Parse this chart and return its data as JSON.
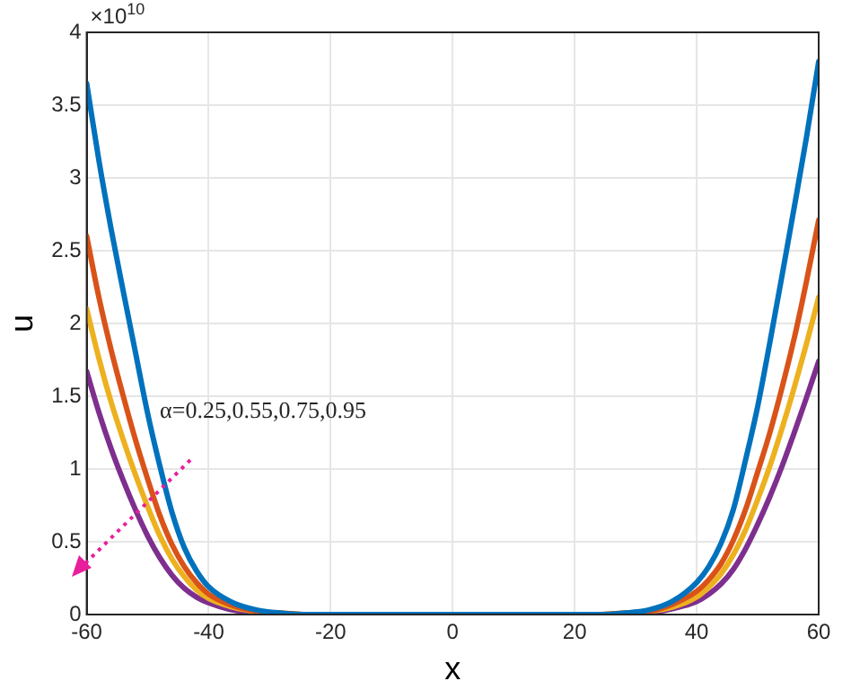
{
  "chart_data": {
    "type": "line",
    "xlabel": "x",
    "ylabel": "u",
    "x": [
      -60,
      -58,
      -56,
      -54,
      -52,
      -50,
      -48,
      -46,
      -44,
      -42,
      -40,
      -36,
      -32,
      -28,
      -24,
      -20,
      0,
      20,
      24,
      28,
      32,
      36,
      40,
      42,
      44,
      46,
      48,
      50,
      52,
      54,
      56,
      58,
      60
    ],
    "series": [
      {
        "color": "#0072bd",
        "values": [
          3.65,
          3.12,
          2.65,
          2.22,
          1.8,
          1.38,
          1.02,
          0.7,
          0.46,
          0.3,
          0.19,
          0.08,
          0.03,
          0.01,
          0,
          0,
          0,
          0,
          0,
          0.01,
          0.03,
          0.09,
          0.22,
          0.33,
          0.49,
          0.72,
          1.06,
          1.43,
          1.87,
          2.33,
          2.8,
          3.28,
          3.8
        ]
      },
      {
        "color": "#d95319",
        "values": [
          2.6,
          2.18,
          1.82,
          1.5,
          1.2,
          0.93,
          0.68,
          0.48,
          0.33,
          0.22,
          0.14,
          0.06,
          0.02,
          0.01,
          0,
          0,
          0,
          0,
          0,
          0.01,
          0.02,
          0.07,
          0.16,
          0.24,
          0.35,
          0.51,
          0.72,
          0.98,
          1.25,
          1.56,
          1.9,
          2.29,
          2.71
        ]
      },
      {
        "color": "#edb120",
        "values": [
          2.1,
          1.76,
          1.46,
          1.2,
          0.96,
          0.74,
          0.54,
          0.38,
          0.26,
          0.17,
          0.11,
          0.05,
          0.02,
          0.01,
          0,
          0,
          0,
          0,
          0,
          0.01,
          0.02,
          0.05,
          0.12,
          0.19,
          0.28,
          0.41,
          0.58,
          0.79,
          1.02,
          1.28,
          1.56,
          1.86,
          2.18
        ]
      },
      {
        "color": "#7e2f8e",
        "values": [
          1.67,
          1.39,
          1.14,
          0.92,
          0.72,
          0.54,
          0.39,
          0.27,
          0.18,
          0.12,
          0.08,
          0.03,
          0.01,
          0,
          0,
          0,
          0,
          0,
          0,
          0,
          0.01,
          0.04,
          0.09,
          0.14,
          0.21,
          0.31,
          0.45,
          0.62,
          0.81,
          1.02,
          1.25,
          1.49,
          1.74
        ]
      }
    ],
    "xlim": [
      -60,
      60
    ],
    "xticks": [
      -60,
      -40,
      -20,
      0,
      20,
      40,
      60
    ],
    "ylim": [
      0,
      4
    ],
    "yticks": [
      0,
      0.5,
      1,
      1.5,
      2,
      2.5,
      3,
      3.5,
      4
    ],
    "grid": true,
    "legend": false,
    "marker": "none",
    "line_style": "solid",
    "annotations": [
      "×10$^{10}$",
      "α=0.25,0.55,0.75,0.95"
    ]
  }
}
